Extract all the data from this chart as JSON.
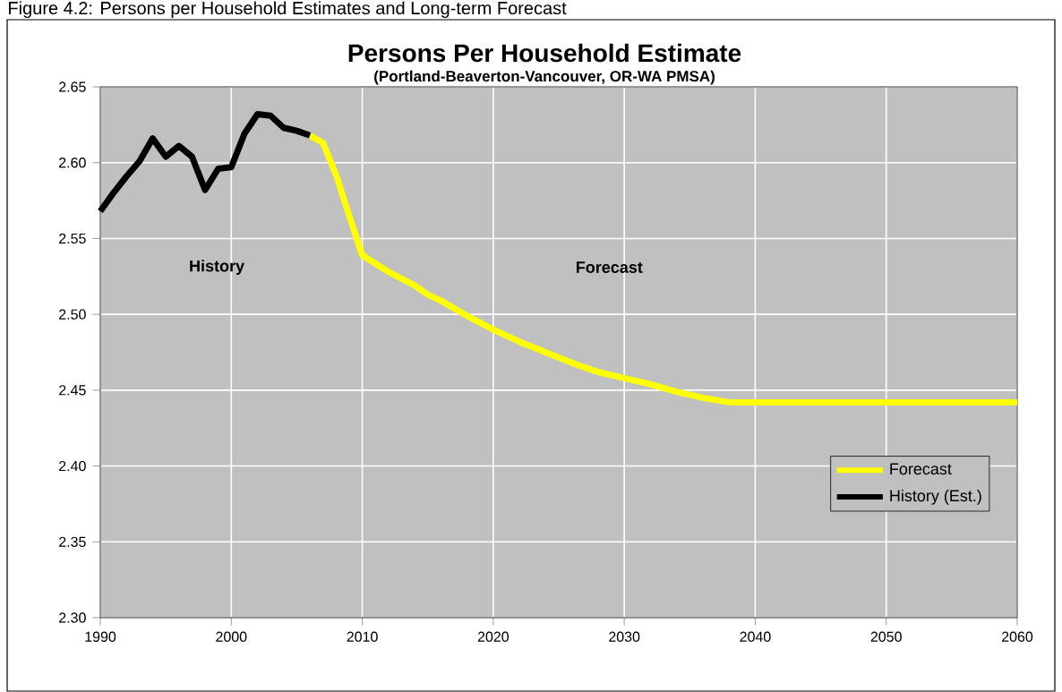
{
  "chart_data": {
    "type": "line",
    "title": "Persons Per Household Estimate",
    "subtitle": "(Portland-Beaverton-Vancouver, OR-WA PMSA)",
    "annotations": [
      "Figure 4.2: Persons per Household Estimates and Long-term Forecast",
      "History",
      "Forecast"
    ],
    "series": [
      {
        "name": "Forecast",
        "color": "#ffff00",
        "x": [
          2006,
          2007,
          2008,
          2009,
          2010,
          2012,
          2014,
          2015,
          2016,
          2018,
          2020,
          2022,
          2024,
          2026,
          2028,
          2030,
          2032,
          2034,
          2036,
          2038,
          2060
        ],
        "values": [
          2.618,
          2.613,
          2.592,
          2.565,
          2.539,
          2.528,
          2.519,
          2.513,
          2.509,
          2.499,
          2.49,
          2.482,
          2.475,
          2.468,
          2.462,
          2.458,
          2.454,
          2.449,
          2.445,
          2.442,
          2.442
        ]
      },
      {
        "name": "History (Est.)",
        "color": "#000000",
        "x": [
          1990,
          1991,
          1992,
          1993,
          1994,
          1995,
          1996,
          1997,
          1998,
          1999,
          2000,
          2001,
          2002,
          2003,
          2004,
          2005,
          2006
        ],
        "values": [
          2.568,
          2.58,
          2.591,
          2.601,
          2.616,
          2.604,
          2.611,
          2.604,
          2.582,
          2.596,
          2.597,
          2.619,
          2.632,
          2.631,
          2.623,
          2.621,
          2.618
        ]
      }
    ],
    "xlim": [
      1990,
      2060
    ],
    "xticks": [
      1990,
      2000,
      2010,
      2020,
      2030,
      2040,
      2050,
      2060
    ],
    "ylim": [
      2.3,
      2.65
    ],
    "yticks": [
      {
        "value": 2.3,
        "label": "2.30"
      },
      {
        "value": 2.35,
        "label": "2.35"
      },
      {
        "value": 2.4,
        "label": "2.40"
      },
      {
        "value": 2.45,
        "label": "2.45"
      },
      {
        "value": 2.5,
        "label": "2.50"
      },
      {
        "value": 2.55,
        "label": "2.55"
      },
      {
        "value": 2.6,
        "label": "2.60"
      },
      {
        "value": 2.65,
        "label": "2.65"
      }
    ],
    "grid": true,
    "legend": "bottom right",
    "marker": "none",
    "line_style": "solid"
  }
}
